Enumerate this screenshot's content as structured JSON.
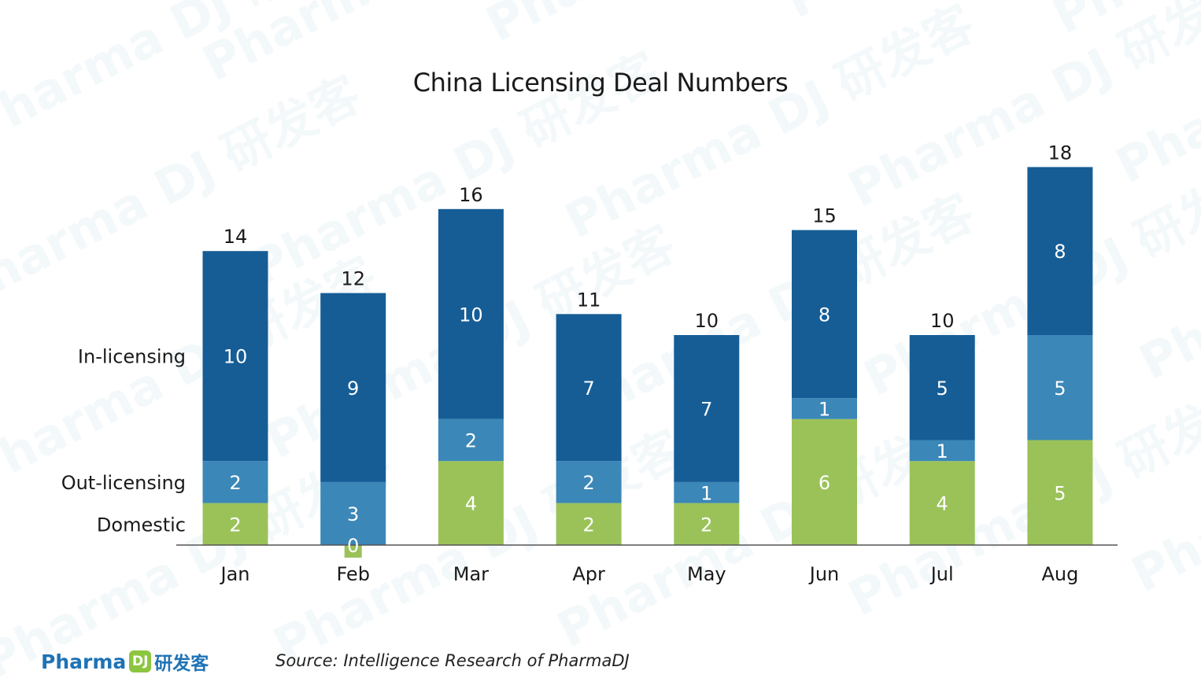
{
  "chart_data": {
    "type": "bar",
    "stacked": true,
    "title": "China Licensing Deal Numbers",
    "xlabel": "",
    "ylabel": "",
    "categories": [
      "Jan",
      "Feb",
      "Mar",
      "Apr",
      "May",
      "Jun",
      "Jul",
      "Aug"
    ],
    "series": [
      {
        "name": "Domestic",
        "values": [
          2,
          0,
          4,
          2,
          2,
          6,
          4,
          5
        ],
        "color": "#9bc259"
      },
      {
        "name": "Out-licensing",
        "values": [
          2,
          3,
          2,
          2,
          1,
          1,
          1,
          5
        ],
        "color": "#3b87b8"
      },
      {
        "name": "In-licensing",
        "values": [
          10,
          9,
          10,
          7,
          7,
          8,
          5,
          8
        ],
        "color": "#165d96"
      }
    ],
    "totals": [
      14,
      12,
      16,
      11,
      10,
      15,
      10,
      18
    ],
    "ylim": [
      0,
      18
    ],
    "legend": "left, series labels aligned beside the first bar",
    "grid": false
  },
  "source": "Source: Intelligence Research of PharmaDJ",
  "logo": {
    "text": "Pharma",
    "mark": "DJ",
    "cn": "研发客"
  },
  "watermark": "Pharma DJ 研发客"
}
